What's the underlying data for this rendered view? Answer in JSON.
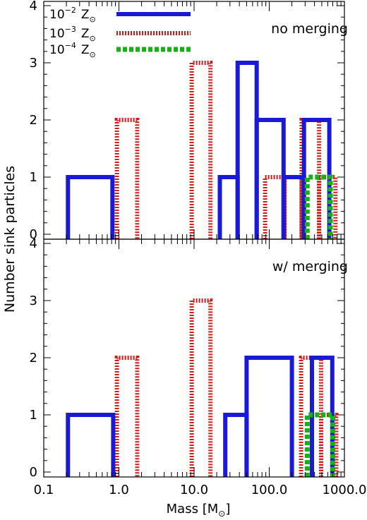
{
  "chart_data": {
    "type": "histogram",
    "x_scale": "log",
    "xlim": [
      0.1,
      1000
    ],
    "ylim": [
      0,
      4.1
    ],
    "xlabel_main": "Mass [M",
    "xlabel_sub": "⊙",
    "xlabel_end": "]",
    "ylabel": "Number sink particles",
    "x_tick_labels": [
      {
        "value": 0.1,
        "label": "0.1"
      },
      {
        "value": 1,
        "label": "1.0"
      },
      {
        "value": 10,
        "label": "10.0"
      },
      {
        "value": 100,
        "label": "100.0"
      },
      {
        "value": 1000,
        "label": "1000.0"
      }
    ],
    "y_tick_labels": [
      "0",
      "1",
      "2",
      "3",
      "4"
    ],
    "legend": [
      {
        "series": "z1e2",
        "base": "10",
        "exp": "−2",
        "sym": "Z",
        "sub": "⊙"
      },
      {
        "series": "z1e3",
        "base": "10",
        "exp": "−3",
        "sym": "Z",
        "sub": "⊙"
      },
      {
        "series": "z1e4",
        "base": "10",
        "exp": "−4",
        "sym": "Z",
        "sub": "⊙"
      }
    ],
    "series_styles": {
      "z1e2": {
        "color": "#1a1ad6",
        "style": "solid"
      },
      "z1e3": {
        "color": "#c81e1e",
        "style": "dotted"
      },
      "z1e4": {
        "color": "#18b018",
        "style": "dashed"
      }
    },
    "panels": [
      {
        "label": "no merging",
        "series": [
          {
            "id": "z1e2",
            "bins": [
              [
                0.21,
                0.82,
                1
              ],
              [
                22,
                38,
                1
              ],
              [
                38,
                68,
                3
              ],
              [
                68,
                155,
                2
              ],
              [
                155,
                290,
                1
              ],
              [
                290,
                630,
                2
              ]
            ]
          },
          {
            "id": "z1e3",
            "bins": [
              [
                0.94,
                1.75,
                2
              ],
              [
                9.3,
                16.5,
                3
              ],
              [
                88,
                160,
                1
              ],
              [
                160,
                270,
                1
              ],
              [
                270,
                460,
                2
              ],
              [
                460,
                760,
                1
              ]
            ]
          },
          {
            "id": "z1e4",
            "bins": [
              [
                320,
                650,
                1
              ]
            ]
          }
        ]
      },
      {
        "label": "w/ merging",
        "series": [
          {
            "id": "z1e2",
            "bins": [
              [
                0.21,
                0.84,
                1
              ],
              [
                26,
                50,
                1
              ],
              [
                50,
                200,
                2
              ],
              [
                370,
                690,
                2
              ]
            ]
          },
          {
            "id": "z1e3",
            "bins": [
              [
                0.94,
                1.75,
                2
              ],
              [
                9.3,
                16.5,
                3
              ],
              [
                265,
                490,
                2
              ],
              [
                490,
                780,
                1
              ]
            ]
          },
          {
            "id": "z1e4",
            "bins": [
              [
                320,
                700,
                1
              ]
            ]
          }
        ]
      }
    ]
  }
}
